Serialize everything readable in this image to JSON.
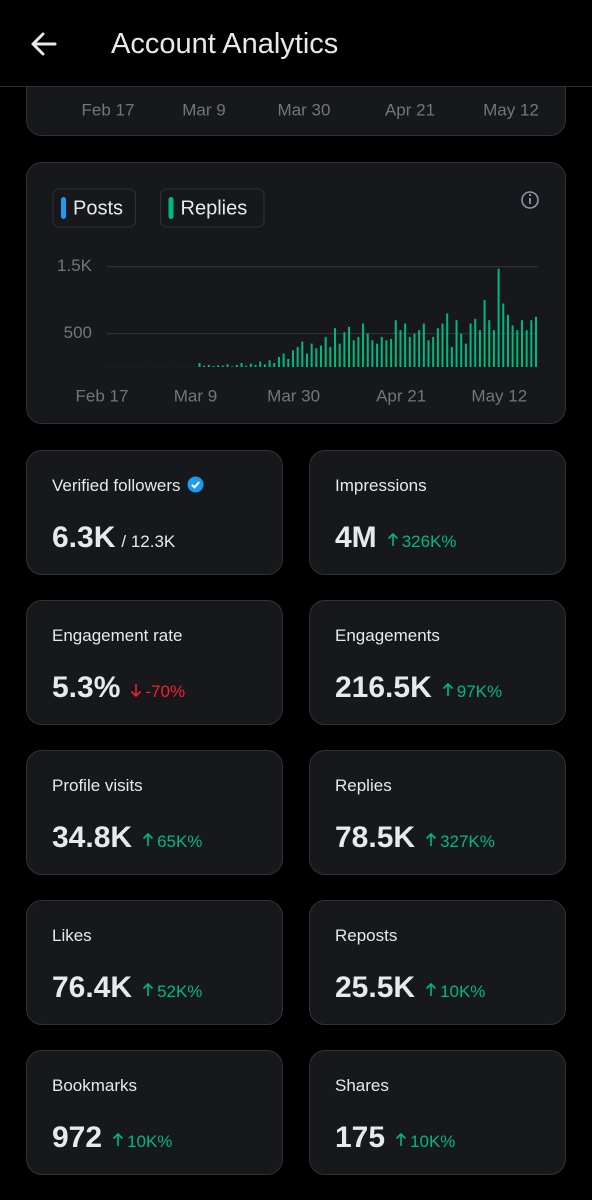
{
  "header": {
    "title": "Account Analytics"
  },
  "top_chart_axis": [
    "Feb 17",
    "Mar 9",
    "Mar 30",
    "Apr 21",
    "May 12"
  ],
  "chart_data": {
    "type": "bar",
    "legend": [
      {
        "name": "Posts",
        "color": "#1d9bf0"
      },
      {
        "name": "Replies",
        "color": "#00ba7c"
      }
    ],
    "categories": [
      "Feb 17",
      null,
      null,
      null,
      null,
      null,
      null,
      null,
      null,
      null,
      null,
      null,
      null,
      null,
      null,
      null,
      null,
      null,
      null,
      null,
      "Mar 9",
      null,
      null,
      null,
      null,
      null,
      null,
      null,
      null,
      null,
      null,
      null,
      null,
      null,
      null,
      null,
      null,
      null,
      null,
      null,
      null,
      "Mar 30",
      null,
      null,
      null,
      null,
      null,
      null,
      null,
      null,
      null,
      null,
      null,
      null,
      null,
      null,
      null,
      null,
      null,
      null,
      null,
      null,
      null,
      null,
      "Apr 21",
      null,
      null,
      null,
      null,
      null,
      null,
      null,
      null,
      null,
      null,
      null,
      null,
      null,
      null,
      null,
      null,
      null,
      null,
      null,
      null,
      "May 12",
      null,
      null,
      null,
      null,
      null,
      null,
      null
    ],
    "series": [
      {
        "color": "#00ba7c",
        "values": [
          2,
          2,
          2,
          2,
          2,
          2,
          2,
          2,
          2,
          2,
          2,
          2,
          2,
          2,
          2,
          2,
          2,
          2,
          2,
          2,
          60,
          20,
          30,
          15,
          25,
          20,
          40,
          10,
          30,
          60,
          20,
          50,
          30,
          80,
          40,
          100,
          60,
          150,
          200,
          120,
          250,
          300,
          380,
          200,
          350,
          280,
          320,
          450,
          300,
          580,
          350,
          520,
          600,
          400,
          450,
          650,
          500,
          400,
          350,
          450,
          400,
          420,
          700,
          550,
          650,
          450,
          500,
          550,
          650,
          400,
          450,
          580,
          650,
          800,
          300,
          700,
          500,
          350,
          650,
          720,
          550,
          1000,
          700,
          550,
          1470,
          950,
          780,
          620,
          550,
          700,
          550,
          700,
          750
        ]
      }
    ],
    "ylim": [
      0,
      1600
    ],
    "yticks": [
      {
        "value": 1500,
        "label": "1.5K"
      },
      500
    ],
    "grid": true
  },
  "stats": [
    {
      "label": "Verified followers",
      "value": "6.3K",
      "total": "/ 12.3K",
      "verified": true
    },
    {
      "label": "Impressions",
      "value": "4M",
      "change": "326K%",
      "direction": "up"
    },
    {
      "label": "Engagement rate",
      "value": "5.3%",
      "change": "-70%",
      "direction": "down"
    },
    {
      "label": "Engagements",
      "value": "216.5K",
      "change": "97K%",
      "direction": "up"
    },
    {
      "label": "Profile visits",
      "value": "34.8K",
      "change": "65K%",
      "direction": "up"
    },
    {
      "label": "Replies",
      "value": "78.5K",
      "change": "327K%",
      "direction": "up"
    },
    {
      "label": "Likes",
      "value": "76.4K",
      "change": "52K%",
      "direction": "up"
    },
    {
      "label": "Reposts",
      "value": "25.5K",
      "change": "10K%",
      "direction": "up"
    },
    {
      "label": "Bookmarks",
      "value": "972",
      "change": "10K%",
      "direction": "up"
    },
    {
      "label": "Shares",
      "value": "175",
      "change": "10K%",
      "direction": "up"
    }
  ]
}
